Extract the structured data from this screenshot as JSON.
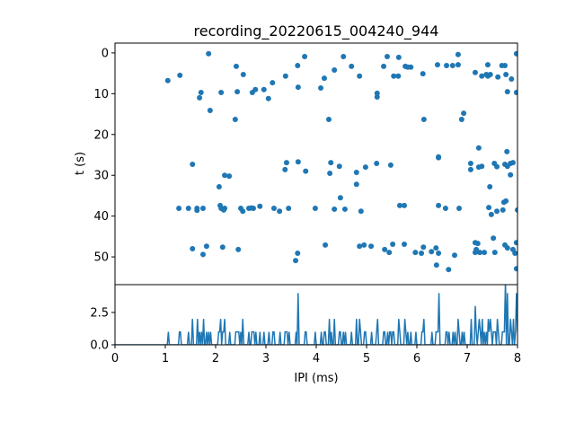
{
  "chart_data": [
    {
      "type": "scatter",
      "title": "recording_20220615_004240_944",
      "xlabel": "",
      "ylabel": "t (s)",
      "xlim": [
        0,
        8
      ],
      "ylim": [
        56.8,
        -2.4
      ],
      "yticks": [
        "0",
        "10",
        "20",
        "30",
        "40",
        "50"
      ],
      "ytick_values": [
        0,
        10,
        20,
        30,
        40,
        50
      ],
      "color": "#1f77b4",
      "points": [
        [
          1.05,
          6.8
        ],
        [
          1.29,
          5.5
        ],
        [
          1.86,
          0.2
        ],
        [
          1.68,
          11.0
        ],
        [
          1.71,
          9.7
        ],
        [
          1.89,
          14.1
        ],
        [
          2.11,
          9.7
        ],
        [
          2.41,
          3.3
        ],
        [
          2.55,
          5.3
        ],
        [
          2.39,
          16.3
        ],
        [
          2.43,
          9.5
        ],
        [
          2.73,
          9.7
        ],
        [
          2.79,
          9.0
        ],
        [
          2.96,
          9.0
        ],
        [
          3.05,
          11.2
        ],
        [
          3.13,
          7.3
        ],
        [
          3.39,
          5.7
        ],
        [
          3.63,
          3.1
        ],
        [
          3.64,
          8.4
        ],
        [
          3.77,
          0.9
        ],
        [
          4.09,
          8.6
        ],
        [
          4.16,
          6.2
        ],
        [
          4.25,
          16.3
        ],
        [
          4.36,
          4.2
        ],
        [
          4.54,
          0.9
        ],
        [
          4.7,
          3.3
        ],
        [
          4.86,
          5.7
        ],
        [
          5.21,
          9.9
        ],
        [
          5.21,
          10.8
        ],
        [
          5.34,
          3.3
        ],
        [
          5.41,
          0.9
        ],
        [
          5.54,
          5.7
        ],
        [
          5.63,
          5.7
        ],
        [
          5.64,
          1.1
        ],
        [
          5.77,
          3.3
        ],
        [
          5.82,
          3.5
        ],
        [
          5.88,
          3.5
        ],
        [
          6.12,
          5.1
        ],
        [
          6.14,
          16.3
        ],
        [
          6.41,
          2.9
        ],
        [
          6.59,
          3.1
        ],
        [
          6.71,
          3.1
        ],
        [
          6.82,
          2.9
        ],
        [
          6.82,
          0.4
        ],
        [
          6.89,
          16.3
        ],
        [
          6.93,
          14.8
        ],
        [
          7.16,
          4.8
        ],
        [
          7.29,
          5.7
        ],
        [
          7.38,
          5.3
        ],
        [
          7.41,
          2.9
        ],
        [
          7.41,
          5.7
        ],
        [
          7.46,
          5.3
        ],
        [
          7.61,
          5.9
        ],
        [
          7.69,
          3.1
        ],
        [
          7.75,
          3.1
        ],
        [
          7.77,
          5.3
        ],
        [
          7.8,
          9.5
        ],
        [
          7.88,
          6.4
        ],
        [
          7.98,
          0.2
        ],
        [
          7.98,
          9.7
        ],
        [
          7.23,
          23.3
        ],
        [
          7.79,
          24.2
        ],
        [
          6.43,
          25.5
        ],
        [
          1.54,
          27.3
        ],
        [
          2.18,
          30.0
        ],
        [
          2.27,
          30.2
        ],
        [
          2.07,
          32.8
        ],
        [
          1.27,
          38.1
        ],
        [
          1.46,
          38.1
        ],
        [
          1.63,
          38.1
        ],
        [
          1.63,
          38.6
        ],
        [
          1.75,
          38.1
        ],
        [
          2.09,
          37.4
        ],
        [
          2.11,
          38.1
        ],
        [
          2.18,
          38.1
        ],
        [
          2.16,
          38.5
        ],
        [
          2.5,
          38.1
        ],
        [
          2.54,
          38.8
        ],
        [
          2.66,
          38.1
        ],
        [
          2.71,
          38.0
        ],
        [
          2.75,
          38.1
        ],
        [
          2.88,
          37.6
        ],
        [
          3.16,
          38.1
        ],
        [
          3.27,
          38.8
        ],
        [
          3.45,
          38.1
        ],
        [
          3.98,
          38.1
        ],
        [
          1.54,
          48.0
        ],
        [
          1.82,
          47.4
        ],
        [
          1.75,
          49.4
        ],
        [
          2.14,
          47.6
        ],
        [
          2.45,
          48.2
        ],
        [
          3.63,
          49.1
        ],
        [
          3.59,
          50.9
        ],
        [
          3.38,
          28.6
        ],
        [
          3.41,
          26.9
        ],
        [
          3.64,
          26.7
        ],
        [
          3.79,
          29.0
        ],
        [
          4.29,
          26.9
        ],
        [
          4.27,
          29.5
        ],
        [
          4.46,
          27.8
        ],
        [
          4.8,
          29.3
        ],
        [
          4.8,
          32.2
        ],
        [
          4.98,
          28.0
        ],
        [
          5.2,
          27.1
        ],
        [
          5.48,
          27.5
        ],
        [
          6.43,
          25.7
        ],
        [
          7.07,
          27.1
        ],
        [
          7.07,
          28.6
        ],
        [
          7.23,
          28.0
        ],
        [
          7.29,
          27.8
        ],
        [
          7.54,
          27.1
        ],
        [
          7.59,
          27.9
        ],
        [
          7.75,
          27.3
        ],
        [
          7.8,
          27.8
        ],
        [
          7.86,
          27.1
        ],
        [
          7.91,
          26.9
        ],
        [
          7.86,
          29.9
        ],
        [
          7.45,
          32.8
        ],
        [
          4.36,
          38.3
        ],
        [
          4.48,
          35.5
        ],
        [
          4.57,
          38.3
        ],
        [
          4.89,
          38.8
        ],
        [
          5.66,
          37.4
        ],
        [
          5.75,
          37.4
        ],
        [
          6.43,
          37.4
        ],
        [
          6.57,
          38.1
        ],
        [
          6.84,
          38.1
        ],
        [
          7.43,
          37.9
        ],
        [
          7.48,
          39.6
        ],
        [
          7.59,
          38.8
        ],
        [
          7.71,
          38.5
        ],
        [
          7.73,
          36.6
        ],
        [
          7.77,
          36.3
        ],
        [
          8.0,
          38.5
        ],
        [
          4.18,
          47.1
        ],
        [
          4.86,
          47.4
        ],
        [
          4.95,
          47.1
        ],
        [
          5.09,
          47.4
        ],
        [
          5.36,
          48.2
        ],
        [
          5.45,
          48.9
        ],
        [
          5.52,
          46.9
        ],
        [
          5.75,
          46.9
        ],
        [
          5.97,
          48.9
        ],
        [
          6.09,
          49.1
        ],
        [
          6.13,
          47.6
        ],
        [
          6.29,
          48.7
        ],
        [
          6.38,
          47.8
        ],
        [
          6.43,
          49.1
        ],
        [
          6.39,
          52.0
        ],
        [
          6.63,
          53.1
        ],
        [
          6.75,
          49.6
        ],
        [
          7.16,
          46.5
        ],
        [
          7.21,
          46.7
        ],
        [
          7.52,
          45.4
        ],
        [
          7.16,
          48.9
        ],
        [
          7.18,
          48.2
        ],
        [
          7.25,
          48.9
        ],
        [
          7.34,
          48.9
        ],
        [
          7.55,
          48.9
        ],
        [
          7.75,
          47.1
        ],
        [
          7.8,
          47.8
        ],
        [
          7.91,
          48.2
        ],
        [
          7.95,
          49.1
        ],
        [
          7.98,
          46.5
        ],
        [
          7.98,
          52.9
        ]
      ]
    },
    {
      "type": "line",
      "title": "",
      "xlabel": "IPI (ms)",
      "ylabel": "",
      "xlim": [
        0,
        8
      ],
      "ylim": [
        0,
        4.65
      ],
      "xticks": [
        "0",
        "1",
        "2",
        "3",
        "4",
        "5",
        "6",
        "7",
        "8"
      ],
      "xtick_values": [
        0,
        1,
        2,
        3,
        4,
        5,
        6,
        7,
        8
      ],
      "yticks": [
        "0.0",
        "2.5"
      ],
      "ytick_values": [
        0,
        2.5
      ],
      "color": "#1f77b4",
      "bin_width": 0.02,
      "note_series": "histogram counts of the scatter x values"
    }
  ]
}
